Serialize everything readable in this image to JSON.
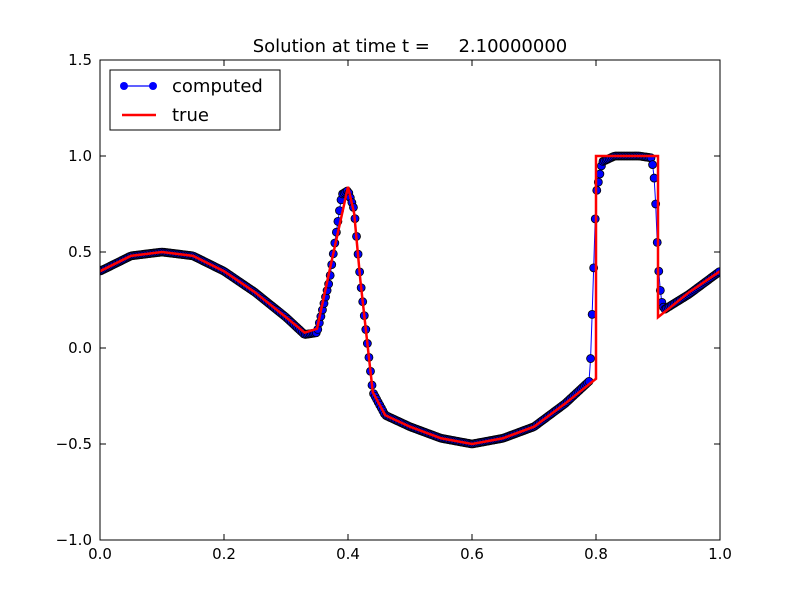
{
  "chart_data": {
    "type": "line",
    "title": "Solution at time t =     2.10000000",
    "xlabel": "",
    "ylabel": "",
    "xlim": [
      0.0,
      1.0
    ],
    "ylim": [
      -1.0,
      1.5
    ],
    "x_ticks": [
      "0.0",
      "0.2",
      "0.4",
      "0.6",
      "0.8",
      "1.0"
    ],
    "y_ticks": [
      "−1.0",
      "−0.5",
      "0.0",
      "0.5",
      "1.0",
      "1.5"
    ],
    "grid": false,
    "legend_position": "top-left",
    "legend": [
      "computed",
      "true"
    ],
    "series": [
      {
        "name": "computed",
        "style": "blue line with circle markers",
        "color": "#0000ff",
        "points": [
          [
            0.0,
            0.4
          ],
          [
            0.05,
            0.48
          ],
          [
            0.1,
            0.5
          ],
          [
            0.15,
            0.48
          ],
          [
            0.2,
            0.4
          ],
          [
            0.25,
            0.29
          ],
          [
            0.3,
            0.16
          ],
          [
            0.33,
            0.07
          ],
          [
            0.35,
            0.08
          ],
          [
            0.37,
            0.35
          ],
          [
            0.39,
            0.8
          ],
          [
            0.4,
            0.82
          ],
          [
            0.41,
            0.72
          ],
          [
            0.42,
            0.35
          ],
          [
            0.44,
            -0.23
          ],
          [
            0.46,
            -0.35
          ],
          [
            0.5,
            -0.41
          ],
          [
            0.55,
            -0.47
          ],
          [
            0.6,
            -0.5
          ],
          [
            0.65,
            -0.47
          ],
          [
            0.7,
            -0.41
          ],
          [
            0.75,
            -0.29
          ],
          [
            0.79,
            -0.17
          ],
          [
            0.795,
            0.29
          ],
          [
            0.8,
            0.8
          ],
          [
            0.81,
            0.97
          ],
          [
            0.83,
            1.0
          ],
          [
            0.87,
            1.0
          ],
          [
            0.89,
            0.99
          ],
          [
            0.895,
            0.85
          ],
          [
            0.9,
            0.45
          ],
          [
            0.905,
            0.25
          ],
          [
            0.91,
            0.2
          ],
          [
            0.95,
            0.28
          ],
          [
            1.0,
            0.4
          ]
        ]
      },
      {
        "name": "true",
        "style": "red solid line",
        "color": "#ff0000",
        "points": [
          [
            0.0,
            0.4
          ],
          [
            0.05,
            0.48
          ],
          [
            0.1,
            0.5
          ],
          [
            0.15,
            0.48
          ],
          [
            0.2,
            0.4
          ],
          [
            0.25,
            0.29
          ],
          [
            0.3,
            0.16
          ],
          [
            0.33,
            0.08
          ],
          [
            0.35,
            0.1
          ],
          [
            0.37,
            0.4
          ],
          [
            0.4,
            0.84
          ],
          [
            0.41,
            0.7
          ],
          [
            0.42,
            0.35
          ],
          [
            0.44,
            -0.23
          ],
          [
            0.46,
            -0.35
          ],
          [
            0.5,
            -0.41
          ],
          [
            0.55,
            -0.47
          ],
          [
            0.6,
            -0.5
          ],
          [
            0.65,
            -0.47
          ],
          [
            0.7,
            -0.41
          ],
          [
            0.75,
            -0.29
          ],
          [
            0.8,
            -0.16
          ],
          [
            0.8,
            1.0
          ],
          [
            0.9,
            1.0
          ],
          [
            0.9,
            0.16
          ],
          [
            0.95,
            0.29
          ],
          [
            1.0,
            0.4
          ]
        ]
      }
    ]
  }
}
